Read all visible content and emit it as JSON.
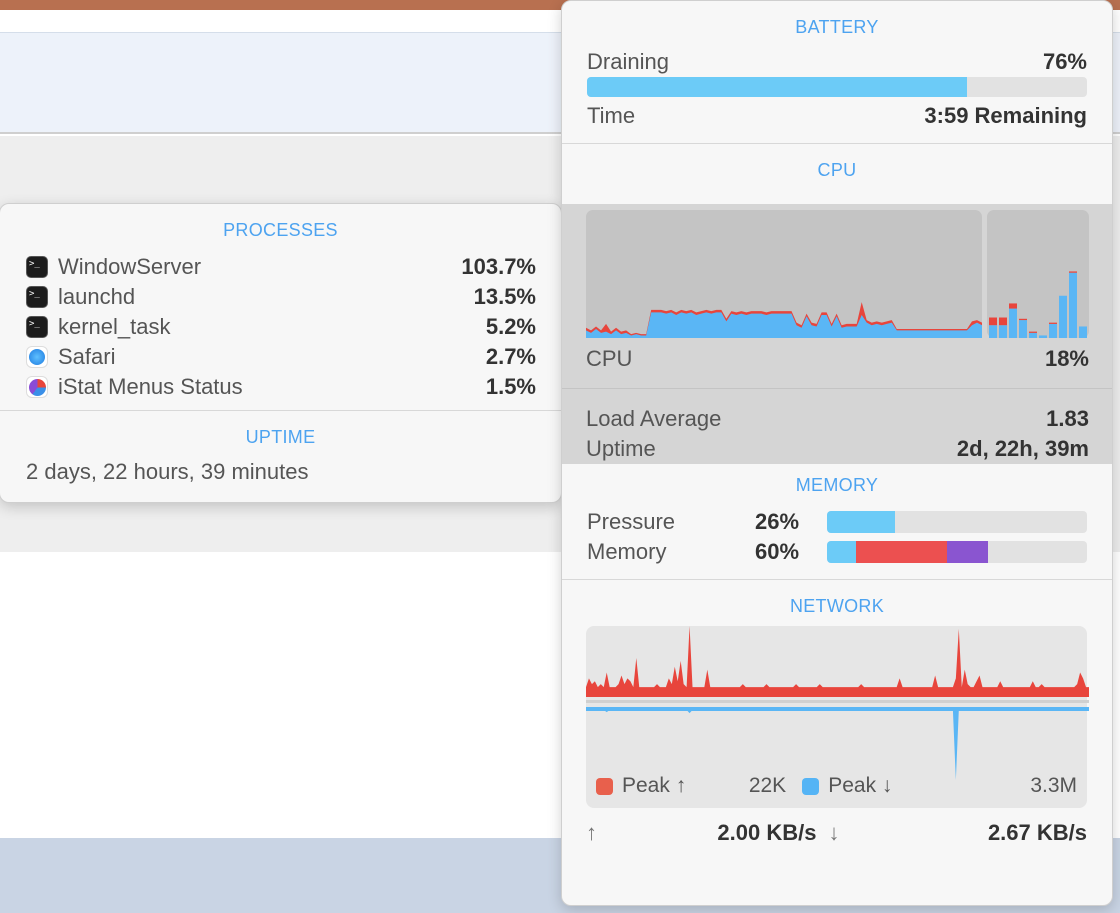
{
  "processes": {
    "title": "PROCESSES",
    "items": [
      {
        "name": "WindowServer",
        "value": "103.7%",
        "icon": "terminal-icon"
      },
      {
        "name": "launchd",
        "value": "13.5%",
        "icon": "terminal-icon"
      },
      {
        "name": "kernel_task",
        "value": "5.2%",
        "icon": "terminal-icon"
      },
      {
        "name": "Safari",
        "value": "2.7%",
        "icon": "safari-icon"
      },
      {
        "name": "iStat Menus Status",
        "value": "1.5%",
        "icon": "istat-icon"
      }
    ]
  },
  "uptime_panel": {
    "title": "UPTIME",
    "value": "2 days, 22 hours, 39 minutes"
  },
  "battery": {
    "title": "BATTERY",
    "state_label": "Draining",
    "percent_label": "76%",
    "percent": 76,
    "time_label": "Time",
    "time_value": "3:59 Remaining",
    "color": "#6ccbf7"
  },
  "cpu": {
    "title": "CPU",
    "label": "CPU",
    "value": "18%",
    "load_label": "Load Average",
    "load_value": "1.83",
    "uptime_label": "Uptime",
    "uptime_value": "2d, 22h, 39m",
    "colors": {
      "user": "#5ab6f5",
      "system": "#e8453c"
    }
  },
  "memory": {
    "title": "MEMORY",
    "pressure_label": "Pressure",
    "pressure_value": "26%",
    "pressure": 26,
    "memory_label": "Memory",
    "memory_value": "60%",
    "segments": [
      {
        "percent": 11,
        "color": "#6ccbf7"
      },
      {
        "percent": 35,
        "color": "#ec5050"
      },
      {
        "percent": 16,
        "color": "#8a55d0"
      }
    ]
  },
  "network": {
    "title": "NETWORK",
    "peak_up_label": "Peak ↑",
    "peak_up_value": "22K",
    "peak_down_label": "Peak ↓",
    "peak_down_value": "3.3M",
    "up_arrow": "↑",
    "up_rate": "2.00 KB/s",
    "down_arrow": "↓",
    "down_rate": "2.67 KB/s",
    "colors": {
      "up": "#e8453c",
      "down": "#5ab6f5"
    }
  },
  "chart_data": [
    {
      "type": "area",
      "series": [
        {
          "name": "user",
          "values": [
            6,
            4,
            7,
            4,
            5,
            3,
            6,
            3,
            4,
            2,
            3,
            2,
            2,
            20,
            20,
            20,
            19,
            20,
            18,
            20,
            19,
            20,
            18,
            19,
            20,
            19,
            20,
            20,
            13,
            19,
            18,
            19,
            18,
            19,
            19,
            19,
            18,
            19,
            19,
            19,
            19,
            19,
            10,
            8,
            17,
            10,
            9,
            18,
            18,
            9,
            17,
            8,
            9,
            9,
            9,
            18,
            12,
            10,
            11,
            10,
            11,
            12,
            6,
            6,
            6,
            6,
            6,
            6,
            6,
            6,
            6,
            6,
            6,
            6,
            6,
            6,
            6,
            10,
            12,
            10
          ]
        },
        {
          "name": "system",
          "values": [
            2,
            2,
            2,
            2,
            6,
            2,
            2,
            2,
            2,
            1,
            1,
            1,
            1,
            2,
            2,
            2,
            2,
            2,
            2,
            2,
            2,
            2,
            2,
            2,
            2,
            2,
            2,
            2,
            2,
            2,
            2,
            2,
            2,
            2,
            2,
            2,
            2,
            2,
            2,
            2,
            2,
            2,
            2,
            2,
            2,
            2,
            2,
            2,
            2,
            2,
            2,
            2,
            2,
            2,
            2,
            10,
            2,
            2,
            2,
            2,
            2,
            2,
            1,
            1,
            1,
            1,
            1,
            1,
            1,
            1,
            1,
            1,
            1,
            1,
            1,
            1,
            1,
            3,
            2,
            2
          ]
        }
      ],
      "ylim": [
        0,
        100
      ]
    },
    {
      "type": "bar",
      "series": [
        {
          "name": "user",
          "values": [
            10,
            10,
            23,
            14,
            4,
            2,
            11,
            33,
            51,
            9
          ]
        },
        {
          "name": "system",
          "values": [
            6,
            6,
            4,
            1,
            1,
            0,
            1,
            0,
            1,
            0
          ]
        }
      ],
      "ylim": [
        0,
        100
      ]
    },
    {
      "type": "area",
      "series": [
        {
          "name": "upload",
          "unit": "K",
          "values": [
            1,
            4,
            2,
            3,
            1,
            2,
            1,
            6,
            1,
            1,
            1,
            2,
            5,
            2,
            4,
            3,
            1,
            11,
            1,
            1,
            1,
            1,
            1,
            1,
            2,
            1,
            1,
            1,
            4,
            2,
            8,
            3,
            10,
            2,
            1,
            22,
            1,
            1,
            1,
            1,
            1,
            7,
            1,
            1,
            1,
            1,
            1,
            1,
            1,
            1,
            1,
            1,
            1,
            2,
            1,
            1,
            1,
            1,
            1,
            1,
            1,
            2,
            1,
            1,
            1,
            1,
            1,
            1,
            1,
            1,
            1,
            2,
            1,
            1,
            1,
            1,
            1,
            1,
            1,
            2,
            1,
            1,
            1,
            1,
            1,
            1,
            1,
            1,
            1,
            1,
            1,
            1,
            1,
            2,
            1,
            1,
            1,
            1,
            1,
            1,
            1,
            1,
            1,
            1,
            1,
            1,
            4,
            1,
            1,
            1,
            1,
            1,
            1,
            1,
            1,
            1,
            1,
            1,
            5,
            1,
            1,
            1,
            1,
            1,
            1,
            4,
            21,
            1,
            7,
            2,
            1,
            1,
            3,
            5,
            1,
            1,
            1,
            1,
            1,
            1,
            3,
            1,
            1,
            1,
            1,
            1,
            1,
            1,
            1,
            1,
            1,
            3,
            1,
            1,
            2,
            1,
            1,
            1,
            1,
            1,
            1,
            1,
            1,
            1,
            1,
            1,
            2,
            6,
            4,
            1,
            1
          ]
        },
        {
          "name": "download",
          "unit": "M",
          "values": [
            0,
            0,
            0,
            0,
            0,
            0,
            0,
            0.1,
            0,
            0,
            0,
            0,
            0,
            0,
            0,
            0,
            0,
            0,
            0,
            0,
            0,
            0,
            0,
            0,
            0,
            0,
            0,
            0,
            0,
            0,
            0,
            0,
            0,
            0,
            0,
            0.15,
            0,
            0,
            0,
            0,
            0,
            0,
            0,
            0,
            0,
            0,
            0,
            0,
            0,
            0,
            0,
            0,
            0,
            0,
            0,
            0,
            0,
            0,
            0,
            0,
            0,
            0,
            0,
            0,
            0,
            0,
            0,
            0,
            0,
            0,
            0,
            0,
            0,
            0,
            0,
            0,
            0,
            0,
            0,
            0,
            0,
            0,
            0,
            0,
            0,
            0,
            0,
            0,
            0,
            0,
            0,
            0,
            0,
            0,
            0,
            0,
            0,
            0,
            0,
            0,
            0,
            0,
            0,
            0,
            0,
            0,
            0,
            0,
            0,
            0,
            0,
            0,
            0,
            0,
            0,
            0,
            0,
            0,
            0,
            0,
            0,
            0,
            0,
            0,
            0,
            3.3,
            0,
            0,
            0,
            0,
            0,
            0,
            0,
            0,
            0,
            0,
            0,
            0,
            0,
            0,
            0,
            0,
            0,
            0,
            0,
            0,
            0,
            0,
            0,
            0,
            0,
            0,
            0,
            0,
            0,
            0,
            0,
            0,
            0,
            0,
            0,
            0,
            0,
            0,
            0,
            0,
            0,
            0,
            0,
            0,
            0
          ]
        }
      ]
    }
  ]
}
